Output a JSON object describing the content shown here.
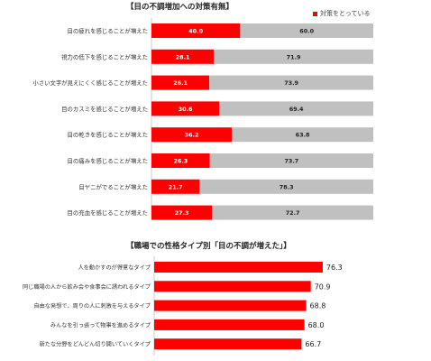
{
  "colors": {
    "accent": "#ff0000",
    "remainder": "#c0c0c0",
    "grid": "#bfbfbf"
  },
  "chart_data": [
    {
      "type": "bar",
      "stacked": true,
      "orientation": "horizontal",
      "title": "【目の不調増加への対策有無】",
      "legend": {
        "entries": [
          "対策をとっている"
        ],
        "placement": "top-right"
      },
      "categories": [
        "目の疲れを感じることが増えた",
        "視力の低下を感じることが増えた",
        "小さい文字が見えにくく感じることが増えた",
        "目のカスミを感じることが増えた",
        "目の乾きを感じることが増えた",
        "目の痛みを感じることが増えた",
        "目ヤニがでることが増えた",
        "目の充血を感じることが増えた"
      ],
      "series": [
        {
          "name": "対策をとっている",
          "values": [
            40.0,
            28.1,
            26.1,
            30.6,
            36.2,
            26.3,
            21.7,
            27.3
          ]
        },
        {
          "values": [
            60.0,
            71.9,
            73.9,
            69.4,
            63.8,
            73.7,
            78.3,
            72.7
          ]
        }
      ],
      "xlim": [
        0,
        100
      ]
    },
    {
      "type": "bar",
      "orientation": "horizontal",
      "title": "【職場での性格タイプ別「目の不調が増えた」】",
      "categories": [
        "人を動かすのが得意なタイプ",
        "同じ職場の人から飲み会や食事会に誘われるタイプ",
        "自由な発想で、周りの人に刺激を与えるタイプ",
        "みんなを引っ張って物事を進めるタイプ",
        "新たな分野をどんどん切り開いていくタイプ"
      ],
      "values": [
        76.3,
        70.9,
        68.8,
        68.0,
        66.7
      ],
      "xlim": [
        0,
        100
      ]
    }
  ]
}
